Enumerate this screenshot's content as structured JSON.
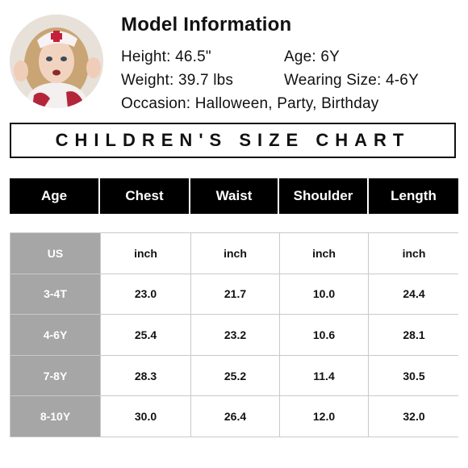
{
  "model": {
    "title": "Model Information",
    "height": "Height: 46.5\"",
    "age": "Age: 6Y",
    "weight": "Weight: 39.7 lbs",
    "wearing_size": "Wearing Size: 4-6Y",
    "occasion": "Occasion: Halloween, Party, Birthday"
  },
  "chart_title": "CHILDREN'S SIZE CHART",
  "table": {
    "headers": [
      "Age",
      "Chest",
      "Waist",
      "Shoulder",
      "Length"
    ],
    "rows": [
      [
        "US",
        "inch",
        "inch",
        "inch",
        "inch"
      ],
      [
        "3-4T",
        "23.0",
        "21.7",
        "10.0",
        "24.4"
      ],
      [
        "4-6Y",
        "25.4",
        "23.2",
        "10.6",
        "28.1"
      ],
      [
        "7-8Y",
        "28.3",
        "25.2",
        "11.4",
        "30.5"
      ],
      [
        "8-10Y",
        "30.0",
        "26.4",
        "12.0",
        "32.0"
      ]
    ]
  },
  "colors": {
    "header_bg": "#000000",
    "label_bg": "#a6a6a6",
    "grid_line": "#c9c9c9"
  }
}
